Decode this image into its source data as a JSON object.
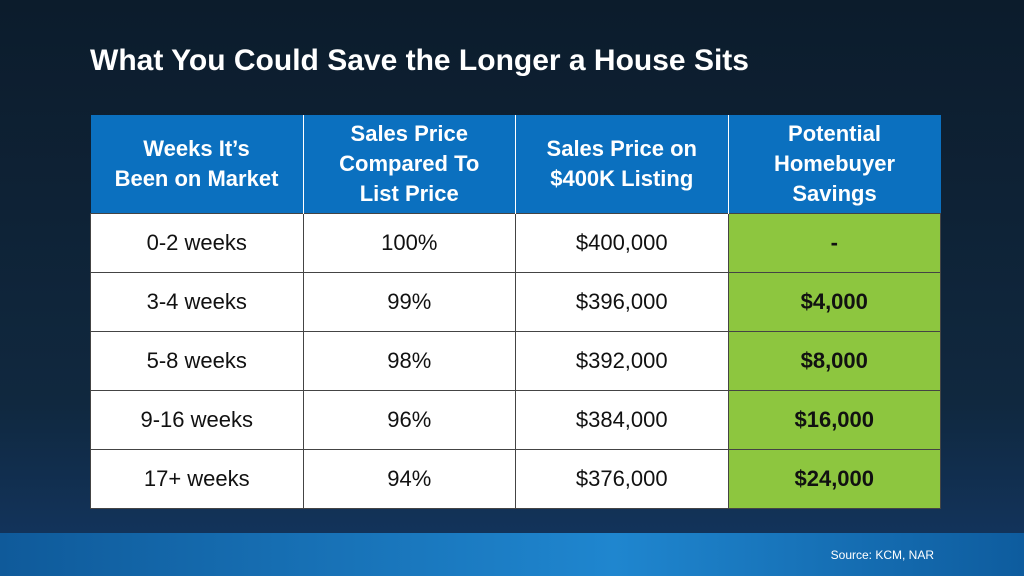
{
  "title": "What You Could Save the Longer a House Sits",
  "table": {
    "header": [
      [
        "Weeks It’s",
        "Been on Market"
      ],
      [
        "Sales Price",
        "Compared To",
        "List Price"
      ],
      [
        "Sales Price on",
        "$400K Listing"
      ],
      [
        "Potential",
        "Homebuyer",
        "Savings"
      ]
    ],
    "rows": [
      [
        "0-2 weeks",
        "100%",
        "$400,000",
        "-"
      ],
      [
        "3-4 weeks",
        "99%",
        "$396,000",
        "$4,000"
      ],
      [
        "5-8 weeks",
        "98%",
        "$392,000",
        "$8,000"
      ],
      [
        "9-16 weeks",
        "96%",
        "$384,000",
        "$16,000"
      ],
      [
        "17+ weeks",
        "94%",
        "$376,000",
        "$24,000"
      ]
    ]
  },
  "source": "Source: KCM, NAR"
}
